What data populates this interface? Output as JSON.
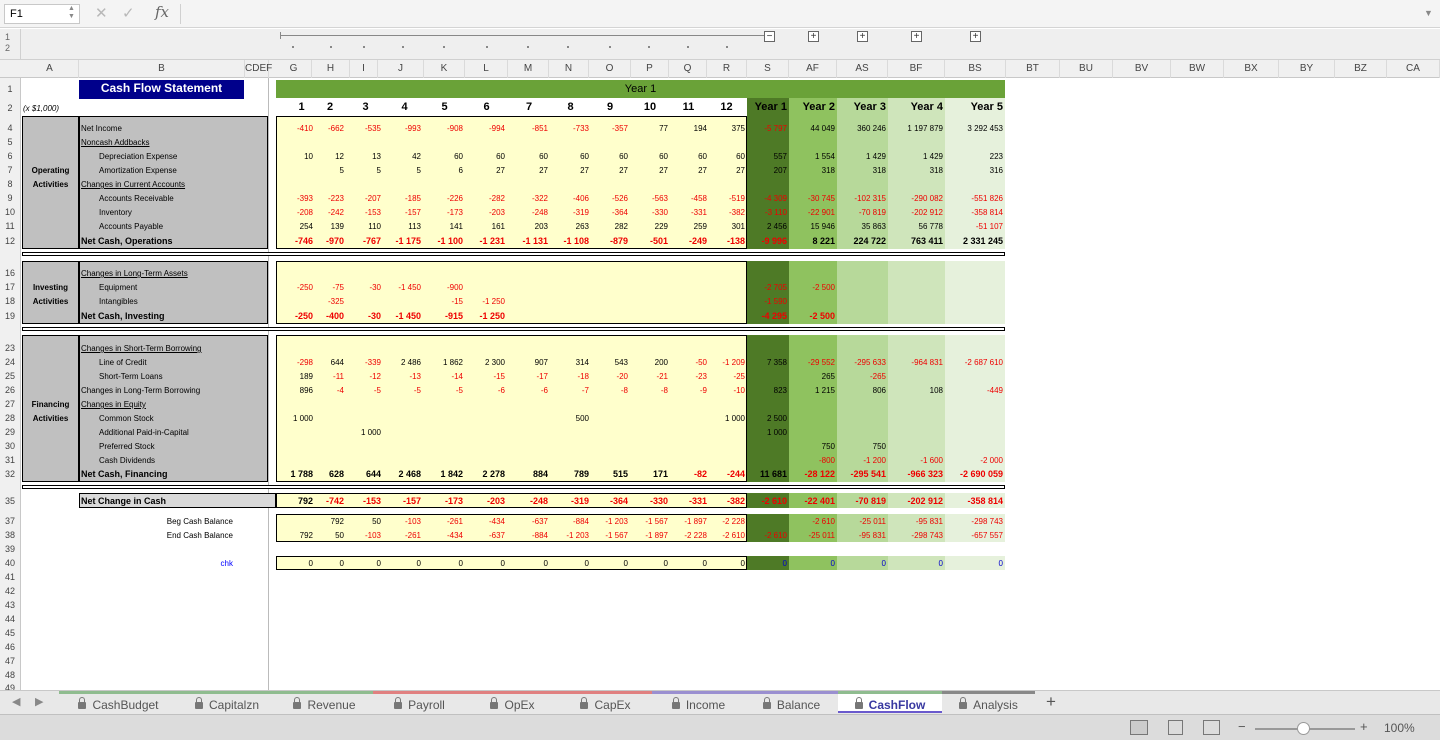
{
  "namebox": "F1",
  "formula": "",
  "group_levels": [
    "1",
    "2"
  ],
  "columns": [
    "A",
    "B",
    "CDEF",
    "G",
    "H",
    "I",
    "J",
    "K",
    "L",
    "M",
    "N",
    "O",
    "P",
    "Q",
    "R",
    "S",
    "AF",
    "AS",
    "BF",
    "BS",
    "BT",
    "BU",
    "BV",
    "BW",
    "BX",
    "BY",
    "BZ",
    "CA"
  ],
  "rows": [
    "1",
    "2",
    "4",
    "5",
    "6",
    "7",
    "8",
    "9",
    "10",
    "11",
    "12",
    "16",
    "17",
    "18",
    "19",
    "23",
    "24",
    "25",
    "26",
    "27",
    "28",
    "29",
    "30",
    "31",
    "32",
    "35",
    "37",
    "38",
    "39",
    "40",
    "41",
    "42",
    "43",
    "44",
    "45",
    "46",
    "47",
    "48",
    "49"
  ],
  "title": "Cash Flow Statement",
  "units": "(x $1,000)",
  "year1_banner": "Year 1",
  "period_headers": [
    "1",
    "2",
    "3",
    "4",
    "5",
    "6",
    "7",
    "8",
    "9",
    "10",
    "11",
    "12",
    "Year 1",
    "Year 2",
    "Year 3",
    "Year 4",
    "Year 5"
  ],
  "sections": {
    "operating": "Operating Activities",
    "investing": "Investing Activities",
    "financing": "Financing Activities"
  },
  "lines": [
    {
      "label": "Net Income",
      "v": [
        "-410",
        "-662",
        "-535",
        "-993",
        "-908",
        "-994",
        "-851",
        "-733",
        "-357",
        "77",
        "194",
        "375",
        "-5 797",
        "44 049",
        "360 246",
        "1 197 879",
        "3 292 453"
      ]
    },
    {
      "label": "Noncash Addbacks",
      "v": []
    },
    {
      "label": "Depreciation Expense",
      "v": [
        "10",
        "12",
        "13",
        "42",
        "60",
        "60",
        "60",
        "60",
        "60",
        "60",
        "60",
        "60",
        "557",
        "1 554",
        "1 429",
        "1 429",
        "223"
      ]
    },
    {
      "label": "Amortization Expense",
      "v": [
        "",
        "5",
        "5",
        "5",
        "6",
        "27",
        "27",
        "27",
        "27",
        "27",
        "27",
        "27",
        "207",
        "318",
        "318",
        "318",
        "316"
      ]
    },
    {
      "label": "Changes in Current Accounts",
      "v": []
    },
    {
      "label": "Accounts Receivable",
      "v": [
        "-393",
        "-223",
        "-207",
        "-185",
        "-226",
        "-282",
        "-322",
        "-406",
        "-526",
        "-563",
        "-458",
        "-519",
        "-4 309",
        "-30 745",
        "-102 315",
        "-290 082",
        "-551 826"
      ]
    },
    {
      "label": "Inventory",
      "v": [
        "-208",
        "-242",
        "-153",
        "-157",
        "-173",
        "-203",
        "-248",
        "-319",
        "-364",
        "-330",
        "-331",
        "-382",
        "-3 110",
        "-22 901",
        "-70 819",
        "-202 912",
        "-358 814"
      ]
    },
    {
      "label": "Accounts Payable",
      "v": [
        "254",
        "139",
        "110",
        "113",
        "141",
        "161",
        "203",
        "263",
        "282",
        "229",
        "259",
        "301",
        "2 456",
        "15 946",
        "35 863",
        "56 778",
        "-51 107"
      ]
    },
    {
      "label": "Net Cash, Operations",
      "v": [
        "-746",
        "-970",
        "-767",
        "-1 175",
        "-1 100",
        "-1 231",
        "-1 131",
        "-1 108",
        "-879",
        "-501",
        "-249",
        "-138",
        "-9 996",
        "8 221",
        "224 722",
        "763 411",
        "2 331 245"
      ]
    },
    {
      "label": "Changes in Long-Term Assets",
      "v": []
    },
    {
      "label": "Equipment",
      "v": [
        "-250",
        "-75",
        "-30",
        "-1 450",
        "-900",
        "",
        "",
        "",
        "",
        "",
        "",
        "",
        "-2 705",
        "-2 500",
        "",
        "",
        ""
      ]
    },
    {
      "label": "Intangibles",
      "v": [
        "",
        "-325",
        "",
        "",
        "-15",
        "-1 250",
        "",
        "",
        "",
        "",
        "",
        "",
        "-1 590",
        "",
        "",
        "",
        ""
      ]
    },
    {
      "label": "Net Cash, Investing",
      "v": [
        "-250",
        "-400",
        "-30",
        "-1 450",
        "-915",
        "-1 250",
        "",
        "",
        "",
        "",
        "",
        "",
        "-4 295",
        "-2 500",
        "",
        "",
        ""
      ]
    },
    {
      "label": "Changes in Short-Term Borrowing",
      "v": []
    },
    {
      "label": "Line of Credit",
      "v": [
        "-298",
        "644",
        "-339",
        "2 486",
        "1 862",
        "2 300",
        "907",
        "314",
        "543",
        "200",
        "-50",
        "-1 209",
        "7 358",
        "-29 552",
        "-295 633",
        "-964 831",
        "-2 687 610"
      ]
    },
    {
      "label": "Short-Term Loans",
      "v": [
        "189",
        "-11",
        "-12",
        "-13",
        "-14",
        "-15",
        "-17",
        "-18",
        "-20",
        "-21",
        "-23",
        "-25",
        "",
        "265",
        "-265",
        "",
        ""
      ]
    },
    {
      "label": "Changes in Long-Term Borrowing",
      "v": [
        "896",
        "-4",
        "-5",
        "-5",
        "-5",
        "-6",
        "-6",
        "-7",
        "-8",
        "-8",
        "-9",
        "-10",
        "823",
        "1 215",
        "806",
        "108",
        "-449"
      ]
    },
    {
      "label": "Changes in Equity",
      "v": []
    },
    {
      "label": "Common Stock",
      "v": [
        "1 000",
        "",
        "",
        "",
        "",
        "",
        "",
        "500",
        "",
        "",
        "",
        "1 000",
        "2 500",
        "",
        "",
        "",
        ""
      ]
    },
    {
      "label": "Additional Paid-in-Capital",
      "v": [
        "",
        "",
        "1 000",
        "",
        "",
        "",
        "",
        "",
        "",
        "",
        "",
        "",
        "1 000",
        "",
        "",
        "",
        ""
      ]
    },
    {
      "label": "Preferred Stock",
      "v": [
        "",
        "",
        "",
        "",
        "",
        "",
        "",
        "",
        "",
        "",
        "",
        "",
        "",
        "750",
        "750",
        "",
        ""
      ]
    },
    {
      "label": "Cash Dividends",
      "v": [
        "",
        "",
        "",
        "",
        "",
        "",
        "",
        "",
        "",
        "",
        "",
        "",
        "",
        "-800",
        "-1 200",
        "-1 600",
        "-2 000"
      ]
    },
    {
      "label": "Net Cash, Financing",
      "v": [
        "1 788",
        "628",
        "644",
        "2 468",
        "1 842",
        "2 278",
        "884",
        "789",
        "515",
        "171",
        "-82",
        "-244",
        "11 681",
        "-28 122",
        "-295 541",
        "-966 323",
        "-2 690 059"
      ]
    },
    {
      "label": "Net Change in Cash",
      "v": [
        "792",
        "-742",
        "-153",
        "-157",
        "-173",
        "-203",
        "-248",
        "-319",
        "-364",
        "-330",
        "-331",
        "-382",
        "-2 610",
        "-22 401",
        "-70 819",
        "-202 912",
        "-358 814"
      ]
    },
    {
      "label": "Beg Cash Balance",
      "v": [
        "",
        "792",
        "50",
        "-103",
        "-261",
        "-434",
        "-637",
        "-884",
        "-1 203",
        "-1 567",
        "-1 897",
        "-2 228",
        "",
        "-2 610",
        "-25 011",
        "-95 831",
        "-298 743"
      ]
    },
    {
      "label": "End Cash Balance",
      "v": [
        "792",
        "50",
        "-103",
        "-261",
        "-434",
        "-637",
        "-884",
        "-1 203",
        "-1 567",
        "-1 897",
        "-2 228",
        "-2 610",
        "-2 610",
        "-25 011",
        "-95 831",
        "-298 743",
        "-657 557"
      ]
    },
    {
      "label": "chk",
      "v": [
        "0",
        "0",
        "0",
        "0",
        "0",
        "0",
        "0",
        "0",
        "0",
        "0",
        "0",
        "0",
        "0",
        "0",
        "0",
        "0",
        "0"
      ]
    }
  ],
  "sheets": [
    "CashBudget",
    "Capitalzn",
    "Revenue",
    "Payroll",
    "OpEx",
    "CapEx",
    "Income",
    "Balance",
    "CashFlow",
    "Analysis"
  ],
  "active_sheet": "CashFlow",
  "add_sheet": "+",
  "zoom": "100%",
  "zoom_minus": "−",
  "zoom_plus": "+",
  "colors": {
    "title_bg": "#00008b",
    "year1_header": "#6aa238",
    "year1_dark": "#4e7a26",
    "year2": "#8fc25f",
    "year3": "#b7d99a",
    "year4": "#cfe5bb",
    "year5": "#e6f1dc",
    "monthly": "#ffffcc",
    "label_gray": "#c0c0c0"
  }
}
